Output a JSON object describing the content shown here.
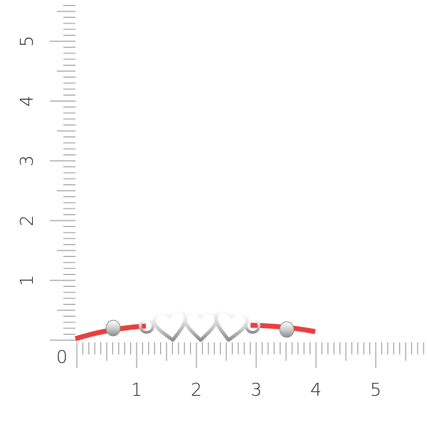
{
  "ruler": {
    "origin_label": "0",
    "x_labels": [
      "1",
      "2",
      "3",
      "4",
      "5"
    ],
    "y_labels": [
      "1",
      "2",
      "3",
      "4",
      "5"
    ],
    "subdivisions_per_unit": 10,
    "tick_color": "#9a9a9a"
  },
  "product": {
    "cord_color": "#e8403f",
    "metal_color": "#d9d9d9",
    "hearts": 3,
    "beads": 2,
    "rings": 2
  }
}
